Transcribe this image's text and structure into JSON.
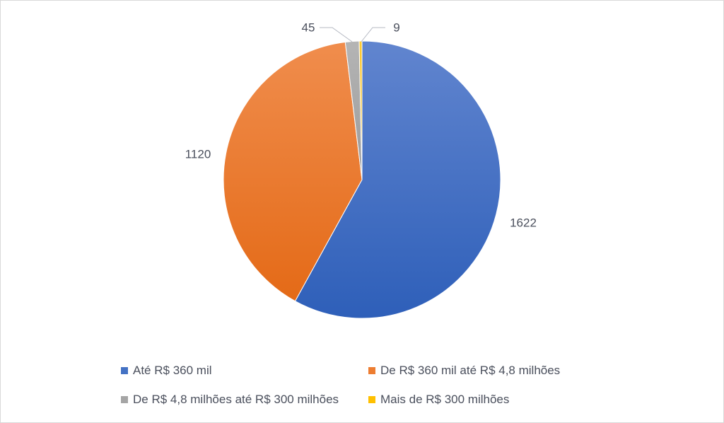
{
  "chart_data": {
    "type": "pie",
    "title": "",
    "categories": [
      "Até R$ 360 mil",
      "De R$ 360 mil até R$ 4,8 milhões",
      "De R$ 4,8 milhões até R$ 300 milhões",
      "Mais de R$ 300 milhões"
    ],
    "values": [
      1622,
      1120,
      45,
      9
    ],
    "data_labels": [
      "1622",
      "1120",
      "45",
      "9"
    ],
    "colors": [
      "#4472c4",
      "#ed7d31",
      "#a5a5a5",
      "#ffc000"
    ],
    "legend_position": "bottom"
  }
}
